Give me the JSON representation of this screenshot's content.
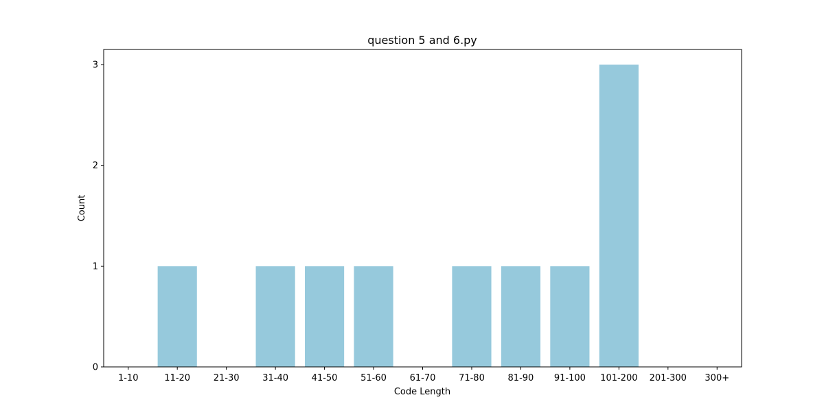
{
  "chart_data": {
    "type": "bar",
    "title": "question 5 and 6.py",
    "xlabel": "Code Length",
    "ylabel": "Count",
    "categories": [
      "1-10",
      "11-20",
      "21-30",
      "31-40",
      "41-50",
      "51-60",
      "61-70",
      "71-80",
      "81-90",
      "91-100",
      "101-200",
      "201-300",
      "300+"
    ],
    "values": [
      0,
      1,
      0,
      1,
      1,
      1,
      0,
      1,
      1,
      1,
      3,
      0,
      0
    ],
    "yticks": [
      0,
      1,
      2,
      3
    ],
    "ylim": [
      0,
      3.15
    ],
    "bar_color": "#96c9dc",
    "grid": false,
    "legend": "none"
  }
}
